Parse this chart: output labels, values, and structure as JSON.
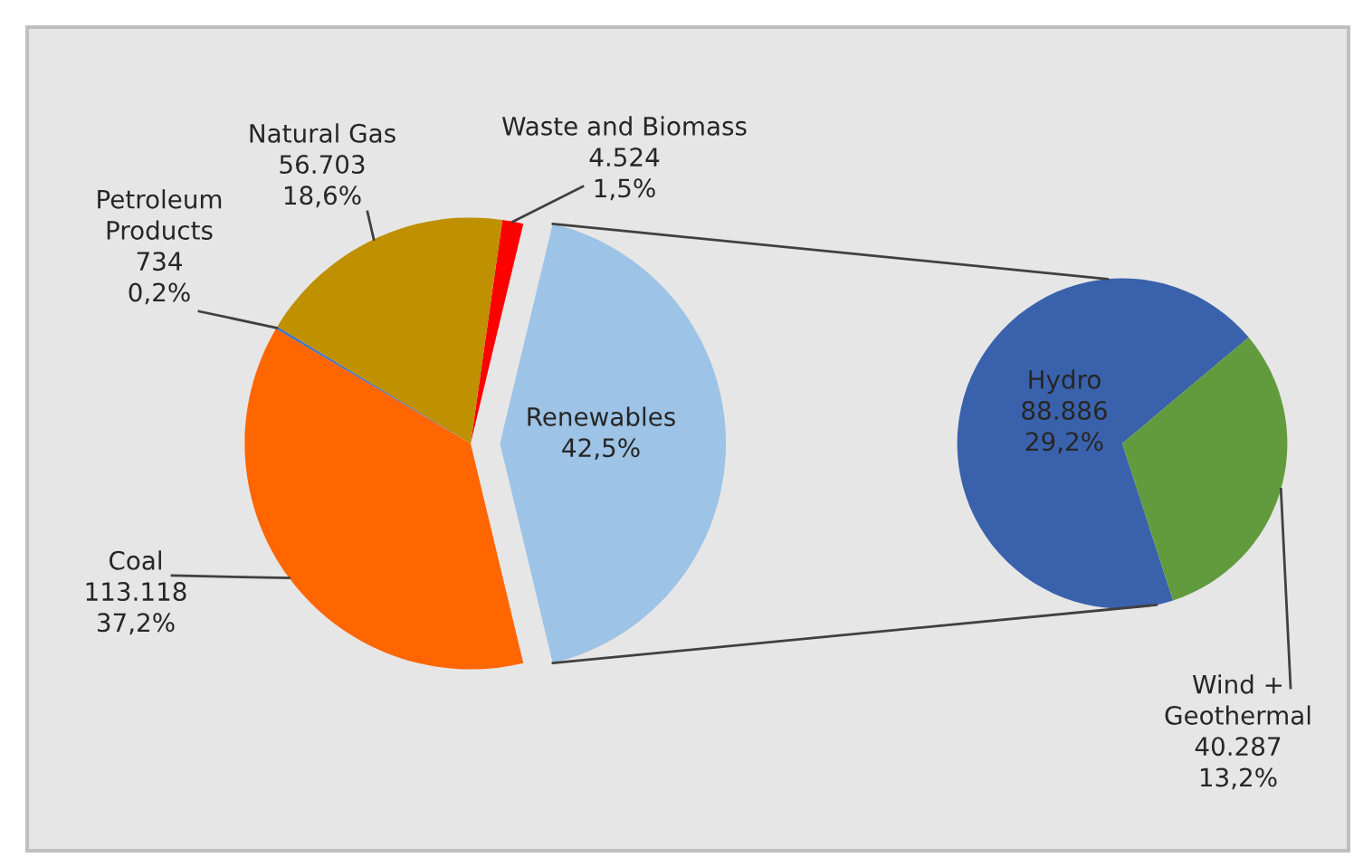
{
  "chart_data": [
    {
      "type": "pie",
      "categories": [
        "Renewables",
        "Waste and Biomass",
        "Natural Gas",
        "Petroleum\nProducts",
        "Coal"
      ],
      "values": [
        42.5,
        1.5,
        18.6,
        0.2,
        37.2
      ],
      "colors": [
        "#9dc3e6",
        "#ff0000",
        "#bf9000",
        "#4472c4",
        "#ff6600"
      ],
      "value_labels": [
        "42,5%",
        "4.524\n1,5%",
        "56.703\n18,6%",
        "734\n0,2%",
        "113.118\n37,2%"
      ]
    },
    {
      "type": "pie",
      "categories": [
        "Hydro",
        "Wind +\nGeothermal"
      ],
      "values": [
        29.2,
        13.2
      ],
      "colors": [
        "#3a62ac",
        "#629b3d"
      ],
      "value_labels": [
        "88.886\n29,2%",
        "40.287\n13,2%"
      ]
    }
  ]
}
